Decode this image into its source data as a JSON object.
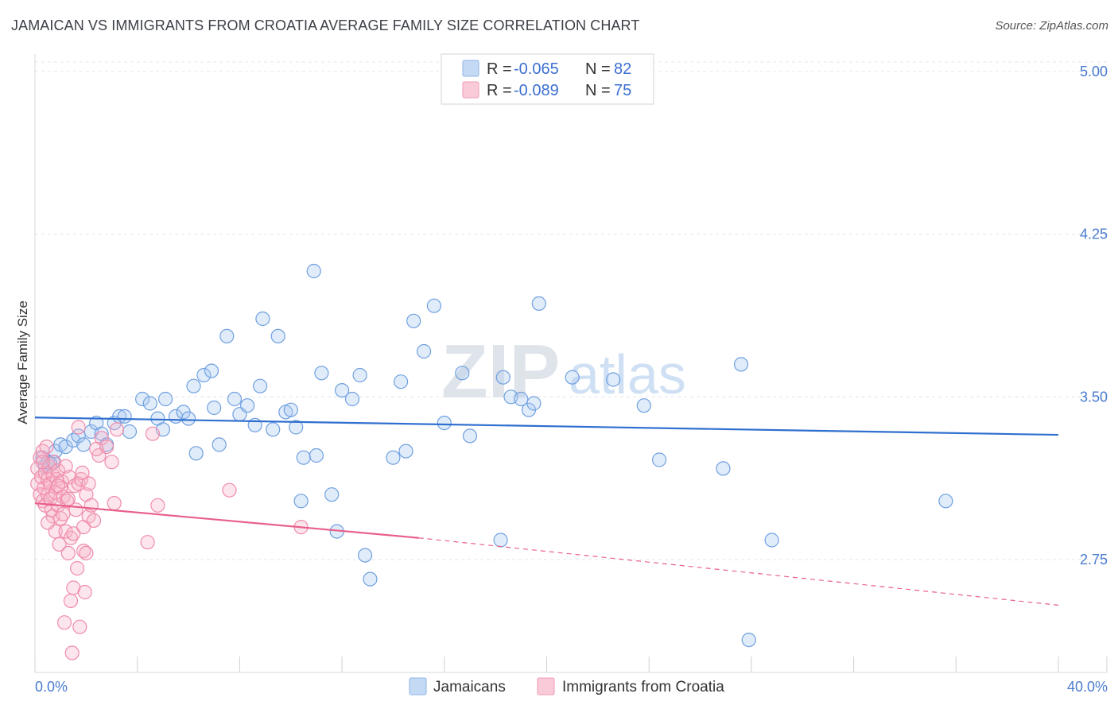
{
  "header": {
    "title": "JAMAICAN VS IMMIGRANTS FROM CROATIA AVERAGE FAMILY SIZE CORRELATION CHART",
    "source": "Source: ZipAtlas.com"
  },
  "watermark": {
    "zip": "ZIP",
    "atlas": "atlas"
  },
  "legend_top": {
    "rows": [
      {
        "r_label": "R = ",
        "r_value": "-0.065",
        "n_label": "N = ",
        "n_value": "82",
        "color": "#a8c8f0"
      },
      {
        "r_label": "R = ",
        "r_value": "-0.089",
        "n_label": "N = ",
        "n_value": "75",
        "color": "#f6b5c8"
      }
    ]
  },
  "chart_data": {
    "type": "scatter",
    "title": "JAMAICAN VS IMMIGRANTS FROM CROATIA AVERAGE FAMILY SIZE CORRELATION CHART",
    "ylabel": "Average Family Size",
    "xlabel": "",
    "xlim": [
      0,
      40
    ],
    "ylim": [
      2.23,
      5.08
    ],
    "x_tick_labels": [
      "0.0%",
      "40.0%"
    ],
    "y_ticks": [
      2.75,
      3.5,
      4.25,
      5.0
    ],
    "y_tick_labels": [
      "2.75",
      "3.50",
      "4.25",
      "5.00"
    ],
    "grid": true,
    "legend_position": "top-center",
    "series": [
      {
        "name": "Jamaicans",
        "color": "#6fa0e0",
        "line_color": "#2f6fcf",
        "trend": {
          "x": [
            0,
            40
          ],
          "y": [
            3.405,
            3.325
          ]
        },
        "points": [
          [
            0.3,
            3.22
          ],
          [
            0.4,
            3.18
          ],
          [
            0.5,
            3.2
          ],
          [
            0.7,
            3.2
          ],
          [
            0.8,
            3.25
          ],
          [
            1.0,
            3.28
          ],
          [
            1.2,
            3.27
          ],
          [
            1.5,
            3.3
          ],
          [
            1.7,
            3.32
          ],
          [
            1.9,
            3.28
          ],
          [
            2.2,
            3.34
          ],
          [
            2.4,
            3.38
          ],
          [
            2.6,
            3.33
          ],
          [
            2.8,
            3.28
          ],
          [
            3.1,
            3.38
          ],
          [
            3.3,
            3.41
          ],
          [
            3.5,
            3.41
          ],
          [
            3.7,
            3.34
          ],
          [
            4.2,
            3.49
          ],
          [
            4.5,
            3.47
          ],
          [
            4.8,
            3.4
          ],
          [
            5.0,
            3.35
          ],
          [
            5.1,
            3.49
          ],
          [
            5.5,
            3.41
          ],
          [
            5.8,
            3.43
          ],
          [
            6.0,
            3.4
          ],
          [
            6.2,
            3.55
          ],
          [
            6.3,
            3.24
          ],
          [
            6.6,
            3.6
          ],
          [
            6.9,
            3.62
          ],
          [
            7.0,
            3.45
          ],
          [
            7.2,
            3.28
          ],
          [
            7.5,
            3.78
          ],
          [
            7.8,
            3.49
          ],
          [
            8.0,
            3.42
          ],
          [
            8.3,
            3.46
          ],
          [
            8.6,
            3.37
          ],
          [
            8.8,
            3.55
          ],
          [
            8.9,
            3.86
          ],
          [
            9.3,
            3.35
          ],
          [
            9.5,
            3.78
          ],
          [
            9.8,
            3.43
          ],
          [
            10.0,
            3.44
          ],
          [
            10.2,
            3.36
          ],
          [
            10.4,
            3.02
          ],
          [
            10.5,
            3.22
          ],
          [
            10.9,
            4.08
          ],
          [
            11.0,
            3.23
          ],
          [
            11.2,
            3.61
          ],
          [
            11.6,
            3.05
          ],
          [
            11.8,
            2.88
          ],
          [
            12.0,
            3.53
          ],
          [
            12.4,
            3.49
          ],
          [
            12.7,
            3.6
          ],
          [
            12.9,
            2.77
          ],
          [
            13.1,
            2.66
          ],
          [
            14.0,
            3.22
          ],
          [
            14.3,
            3.57
          ],
          [
            14.5,
            3.25
          ],
          [
            14.8,
            3.85
          ],
          [
            15.2,
            3.71
          ],
          [
            15.6,
            3.92
          ],
          [
            16.0,
            3.38
          ],
          [
            16.7,
            3.61
          ],
          [
            17.0,
            3.32
          ],
          [
            18.2,
            2.84
          ],
          [
            18.3,
            3.59
          ],
          [
            18.6,
            3.5
          ],
          [
            19.0,
            3.49
          ],
          [
            19.3,
            3.44
          ],
          [
            19.5,
            3.47
          ],
          [
            19.7,
            3.93
          ],
          [
            21.0,
            3.59
          ],
          [
            22.6,
            3.58
          ],
          [
            23.8,
            3.46
          ],
          [
            24.4,
            3.21
          ],
          [
            26.9,
            3.17
          ],
          [
            27.6,
            3.65
          ],
          [
            27.9,
            2.38
          ],
          [
            28.8,
            2.84
          ],
          [
            35.6,
            3.02
          ],
          [
            0.6,
            3.19
          ]
        ]
      },
      {
        "name": "Immigrants from Croatia",
        "color": "#f08cab",
        "line_color": "#e8608a",
        "trend": {
          "x": [
            0,
            15
          ],
          "y": [
            3.01,
            2.85
          ]
        },
        "trend_dashed": {
          "x": [
            15,
            40
          ],
          "y": [
            2.85,
            2.54
          ]
        },
        "points": [
          [
            0.1,
            3.17
          ],
          [
            0.1,
            3.1
          ],
          [
            0.2,
            3.22
          ],
          [
            0.2,
            3.05
          ],
          [
            0.25,
            3.13
          ],
          [
            0.3,
            3.02
          ],
          [
            0.3,
            3.25
          ],
          [
            0.35,
            3.08
          ],
          [
            0.4,
            3.15
          ],
          [
            0.4,
            3.0
          ],
          [
            0.45,
            3.27
          ],
          [
            0.5,
            3.12
          ],
          [
            0.5,
            3.05
          ],
          [
            0.55,
            3.18
          ],
          [
            0.6,
            3.03
          ],
          [
            0.6,
            3.1
          ],
          [
            0.65,
            2.98
          ],
          [
            0.7,
            3.14
          ],
          [
            0.7,
            2.95
          ],
          [
            0.75,
            3.2
          ],
          [
            0.8,
            3.06
          ],
          [
            0.8,
            2.88
          ],
          [
            0.85,
            3.12
          ],
          [
            0.9,
            3.0
          ],
          [
            0.9,
            3.16
          ],
          [
            0.95,
            2.82
          ],
          [
            1.0,
            3.08
          ],
          [
            1.0,
            2.94
          ],
          [
            1.05,
            3.11
          ],
          [
            1.1,
            2.96
          ],
          [
            1.1,
            3.04
          ],
          [
            1.15,
            2.46
          ],
          [
            1.2,
            3.18
          ],
          [
            1.2,
            2.88
          ],
          [
            1.25,
            3.02
          ],
          [
            1.3,
            2.78
          ],
          [
            1.35,
            3.13
          ],
          [
            1.4,
            2.85
          ],
          [
            1.4,
            2.56
          ],
          [
            1.45,
            2.32
          ],
          [
            1.5,
            2.87
          ],
          [
            1.5,
            2.62
          ],
          [
            1.55,
            3.09
          ],
          [
            1.6,
            2.98
          ],
          [
            1.65,
            2.71
          ],
          [
            1.7,
            3.1
          ],
          [
            1.7,
            3.36
          ],
          [
            1.75,
            2.44
          ],
          [
            1.8,
            3.12
          ],
          [
            1.85,
            3.15
          ],
          [
            1.9,
            2.79
          ],
          [
            1.9,
            2.9
          ],
          [
            1.95,
            2.6
          ],
          [
            2.0,
            3.05
          ],
          [
            2.0,
            2.78
          ],
          [
            2.1,
            3.1
          ],
          [
            2.1,
            2.95
          ],
          [
            2.2,
            3.0
          ],
          [
            2.3,
            2.93
          ],
          [
            2.5,
            3.23
          ],
          [
            2.6,
            3.31
          ],
          [
            2.8,
            3.27
          ],
          [
            3.0,
            3.2
          ],
          [
            3.1,
            3.01
          ],
          [
            3.2,
            3.35
          ],
          [
            4.4,
            2.83
          ],
          [
            4.6,
            3.33
          ],
          [
            4.8,
            3.0
          ],
          [
            7.6,
            3.07
          ],
          [
            10.4,
            2.9
          ],
          [
            0.3,
            3.2
          ],
          [
            0.5,
            2.92
          ],
          [
            0.9,
            3.09
          ],
          [
            1.3,
            3.03
          ],
          [
            2.4,
            3.26
          ]
        ]
      }
    ]
  }
}
